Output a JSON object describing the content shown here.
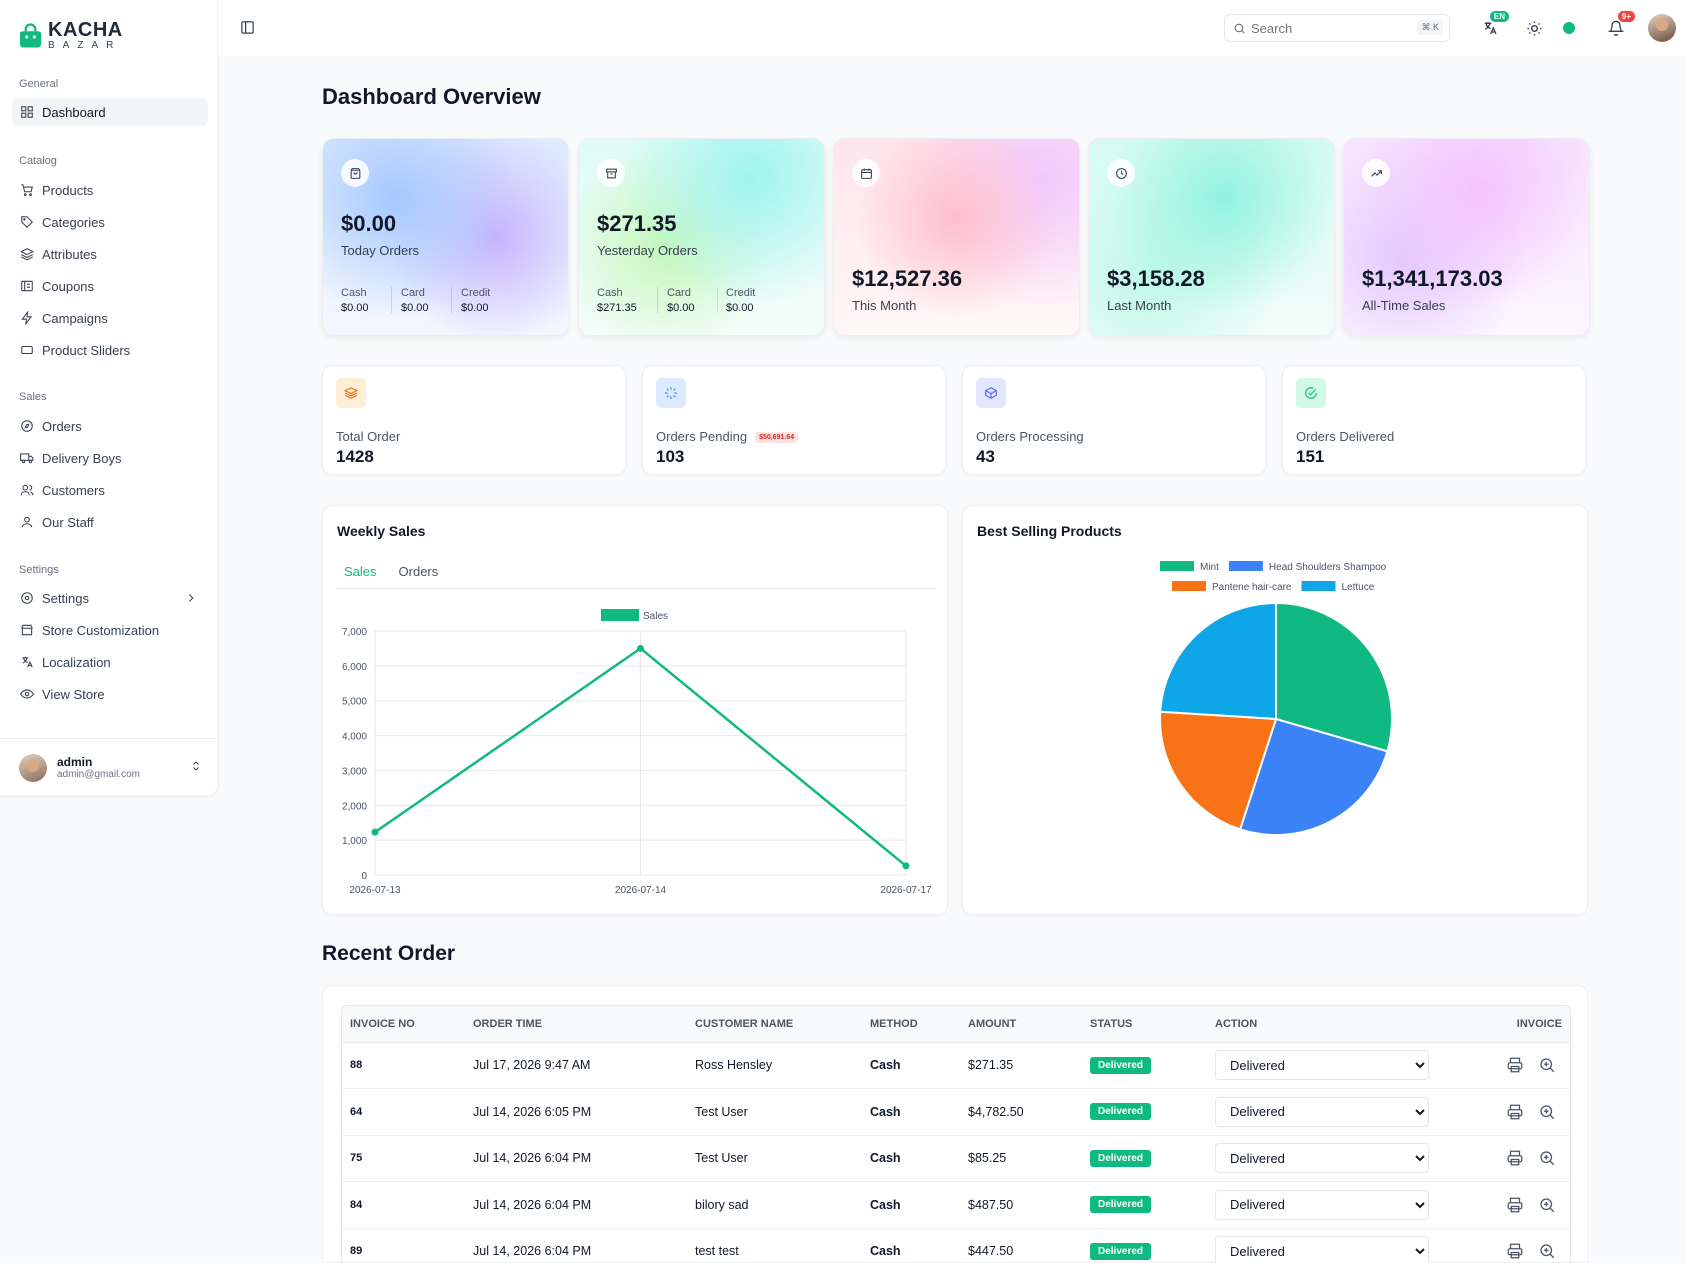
{
  "brand": {
    "name": "KACHA",
    "sub": "BAZAR"
  },
  "sidebar": {
    "groups": [
      {
        "title": "General",
        "items": [
          {
            "label": "Dashboard",
            "icon": "grid-icon",
            "active": true
          }
        ]
      },
      {
        "title": "Catalog",
        "items": [
          {
            "label": "Products",
            "icon": "cart-icon"
          },
          {
            "label": "Categories",
            "icon": "tag-icon"
          },
          {
            "label": "Attributes",
            "icon": "layers-icon"
          },
          {
            "label": "Coupons",
            "icon": "coupon-icon"
          },
          {
            "label": "Campaigns",
            "icon": "bolt-icon"
          },
          {
            "label": "Product Sliders",
            "icon": "slider-icon"
          }
        ]
      },
      {
        "title": "Sales",
        "items": [
          {
            "label": "Orders",
            "icon": "compass-icon"
          },
          {
            "label": "Delivery Boys",
            "icon": "truck-icon"
          },
          {
            "label": "Customers",
            "icon": "users-icon"
          },
          {
            "label": "Our Staff",
            "icon": "user-icon"
          }
        ]
      },
      {
        "title": "Settings",
        "items": [
          {
            "label": "Settings",
            "icon": "gear-icon",
            "chevron": true
          },
          {
            "label": "Store Customization",
            "icon": "store-icon"
          },
          {
            "label": "Localization",
            "icon": "translate-icon"
          },
          {
            "label": "View Store",
            "icon": "eye-icon"
          }
        ]
      }
    ],
    "user": {
      "name": "admin",
      "email": "admin@gmail.com"
    }
  },
  "topbar": {
    "search_placeholder": "Search",
    "search_shortcut": "⌘ K",
    "lang_badge": "EN",
    "notif_badge": "9+"
  },
  "page": {
    "title": "Dashboard Overview",
    "recent_title": "Recent Order"
  },
  "stats": [
    {
      "value": "$0.00",
      "label": "Today Orders",
      "icon": "bag-icon",
      "subs": [
        {
          "label": "Cash",
          "value": "$0.00"
        },
        {
          "label": "Card",
          "value": "$0.00"
        },
        {
          "label": "Credit",
          "value": "$0.00"
        }
      ]
    },
    {
      "value": "$271.35",
      "label": "Yesterday Orders",
      "icon": "archive-icon",
      "subs": [
        {
          "label": "Cash",
          "value": "$271.35"
        },
        {
          "label": "Card",
          "value": "$0.00"
        },
        {
          "label": "Credit",
          "value": "$0.00"
        }
      ]
    },
    {
      "value": "$12,527.36",
      "label": "This Month",
      "icon": "calendar-icon"
    },
    {
      "value": "$3,158.28",
      "label": "Last Month",
      "icon": "clock-icon"
    },
    {
      "value": "$1,341,173.03",
      "label": "All-Time Sales",
      "icon": "trending-up-icon"
    }
  ],
  "mini_stats": [
    {
      "label": "Total Order",
      "value": "1428",
      "icon": "stack-icon",
      "bg": "#ffedd5",
      "fg": "#f97316"
    },
    {
      "label": "Orders Pending",
      "value": "103",
      "tag": "$50,691.64",
      "icon": "loader-icon",
      "bg": "#dbeafe",
      "fg": "#3b82f6"
    },
    {
      "label": "Orders Processing",
      "value": "43",
      "icon": "box-icon",
      "bg": "#e0e7ff",
      "fg": "#6366f1"
    },
    {
      "label": "Orders Delivered",
      "value": "151",
      "icon": "check-circle-icon",
      "bg": "#d1fae5",
      "fg": "#10b981"
    }
  ],
  "weekly_sales": {
    "title": "Weekly Sales",
    "tabs": [
      "Sales",
      "Orders"
    ],
    "active_tab": "Sales"
  },
  "best_selling": {
    "title": "Best Selling Products"
  },
  "chart_data": [
    {
      "type": "line",
      "title": "",
      "x": [
        "2026-07-13",
        "2026-07-14",
        "2026-07-17"
      ],
      "series": [
        {
          "name": "Sales",
          "values": [
            1230,
            6500,
            260
          ],
          "color": "#10b981"
        }
      ],
      "ylim": [
        0,
        7000
      ],
      "yticks": [
        0,
        1000,
        2000,
        3000,
        4000,
        5000,
        6000,
        7000
      ],
      "ytick_labels": [
        "0",
        "1,000",
        "2,000",
        "3,000",
        "4,000",
        "5,000",
        "6,000",
        "7,000"
      ],
      "grid": true,
      "legend": "top-center"
    },
    {
      "type": "pie",
      "title": "",
      "categories": [
        "Mint",
        "Head Shoulders Shampoo",
        "Pantene hair-care",
        "Lettuce"
      ],
      "values": [
        29.5,
        25.5,
        21,
        24
      ],
      "colors": [
        "#10b981",
        "#3b82f6",
        "#f97316",
        "#0ea5e9"
      ],
      "legend": "top-center"
    }
  ],
  "recent_orders": {
    "columns": [
      "INVOICE NO",
      "ORDER TIME",
      "CUSTOMER NAME",
      "METHOD",
      "AMOUNT",
      "STATUS",
      "ACTION",
      "INVOICE"
    ],
    "rows": [
      {
        "invoice": "88",
        "time": "Jul 17, 2026 9:47 AM",
        "customer": "Ross Hensley",
        "method": "Cash",
        "amount": "$271.35",
        "status": "Delivered",
        "action": "Delivered"
      },
      {
        "invoice": "64",
        "time": "Jul 14, 2026 6:05 PM",
        "customer": "Test User",
        "method": "Cash",
        "amount": "$4,782.50",
        "status": "Delivered",
        "action": "Delivered"
      },
      {
        "invoice": "75",
        "time": "Jul 14, 2026 6:04 PM",
        "customer": "Test User",
        "method": "Cash",
        "amount": "$85.25",
        "status": "Delivered",
        "action": "Delivered"
      },
      {
        "invoice": "84",
        "time": "Jul 14, 2026 6:04 PM",
        "customer": "bilory sad",
        "method": "Cash",
        "amount": "$487.50",
        "status": "Delivered",
        "action": "Delivered"
      },
      {
        "invoice": "89",
        "time": "Jul 14, 2026 6:04 PM",
        "customer": "test test",
        "method": "Cash",
        "amount": "$447.50",
        "status": "Delivered",
        "action": "Delivered"
      }
    ]
  }
}
